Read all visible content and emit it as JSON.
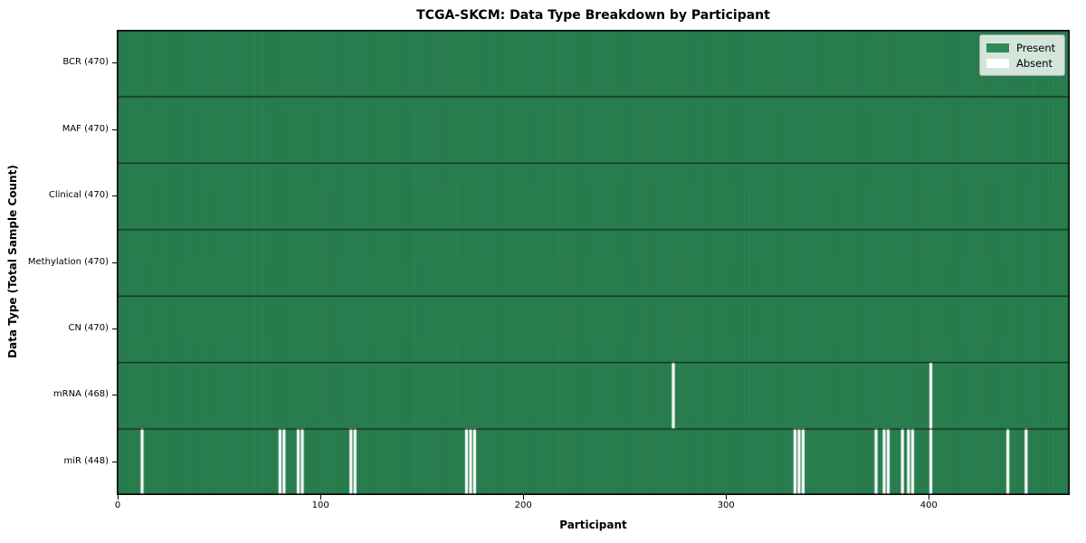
{
  "figure": {
    "background": "#ffffff"
  },
  "chart_data": {
    "type": "heatmap",
    "title": "TCGA-SKCM: Data Type Breakdown by Participant",
    "xlabel": "Participant",
    "ylabel": "Data Type (Total Sample Count)",
    "n_participants": 470,
    "xlim": [
      -0.5,
      469.5
    ],
    "x_ticks": [
      0,
      100,
      200,
      300,
      400
    ],
    "grid": false,
    "legend_position": "upper right",
    "legend": [
      {
        "label": "Present",
        "color": "#2e8b57"
      },
      {
        "label": "Absent",
        "color": "#ffffff"
      }
    ],
    "colors": {
      "present": "#2e8b57",
      "absent": "#ffffff",
      "cell_edge": "#123b24",
      "cell_edge_alpha": 0.55,
      "row_separator": "#111111",
      "plot_border": "#000000"
    },
    "rows": [
      {
        "label": "BCR (470)",
        "data_type": "BCR",
        "total_samples": 470,
        "absent_participants": []
      },
      {
        "label": "MAF (470)",
        "data_type": "MAF",
        "total_samples": 470,
        "absent_participants": []
      },
      {
        "label": "Clinical (470)",
        "data_type": "Clinical",
        "total_samples": 470,
        "absent_participants": []
      },
      {
        "label": "Methylation (470)",
        "data_type": "Methylation",
        "total_samples": 470,
        "absent_participants": []
      },
      {
        "label": "CN (470)",
        "data_type": "CN",
        "total_samples": 470,
        "absent_participants": []
      },
      {
        "label": "mRNA (468)",
        "data_type": "mRNA",
        "total_samples": 468,
        "absent_participants": [
          274,
          401
        ]
      },
      {
        "label": "miR (448)",
        "data_type": "miR",
        "total_samples": 448,
        "absent_participants": [
          12,
          80,
          82,
          89,
          91,
          115,
          117,
          172,
          174,
          176,
          334,
          336,
          338,
          374,
          378,
          380,
          387,
          390,
          392,
          401,
          439,
          448
        ]
      }
    ]
  },
  "layout_note": ""
}
